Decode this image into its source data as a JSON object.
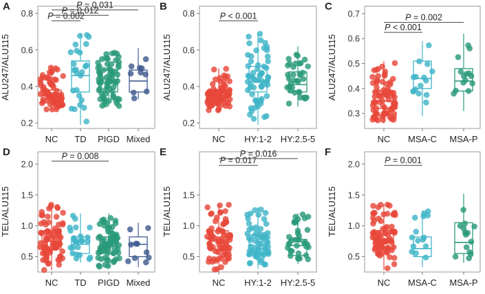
{
  "colors": {
    "NC": "#e8483a",
    "TD": "#3fb4c8",
    "PIGD": "#2a9a7a",
    "Mixed": "#3f5b8f",
    "HY:1-2": "#3fb4c8",
    "HY:2.5-5": "#2a9a7a",
    "MSA-C": "#3fb4c8",
    "MSA-P": "#2a9a7a"
  },
  "chart_data": [
    {
      "type": "box",
      "panel": "A",
      "ylabel": "ALU247/ALU115",
      "ylim": [
        0.17,
        0.84
      ],
      "yticks": [
        0.2,
        0.4,
        0.6,
        0.8
      ],
      "categories": [
        "NC",
        "TD",
        "PIGD",
        "Mixed"
      ],
      "counts": [
        80,
        25,
        70,
        10
      ],
      "boxes": [
        {
          "min": 0.27,
          "q1": 0.31,
          "median": 0.35,
          "q3": 0.38,
          "max": 0.51
        },
        {
          "min": 0.19,
          "q1": 0.37,
          "median": 0.46,
          "q3": 0.54,
          "max": 0.69
        },
        {
          "min": 0.29,
          "q1": 0.37,
          "median": 0.42,
          "q3": 0.49,
          "max": 0.59
        },
        {
          "min": 0.33,
          "q1": 0.37,
          "median": 0.43,
          "q3": 0.49,
          "max": 0.61
        }
      ],
      "annotations": [
        {
          "text": "P = 0.002",
          "from": 0,
          "to": 1,
          "y": 0.76
        },
        {
          "text": "P = 0.012",
          "from": 0,
          "to": 2,
          "y": 0.79
        },
        {
          "text": "P = 0.031",
          "from": 0,
          "to": 3,
          "y": 0.82
        }
      ]
    },
    {
      "type": "box",
      "panel": "B",
      "ylabel": "ALU247/ALU115",
      "ylim": [
        0.17,
        0.84
      ],
      "yticks": [
        0.2,
        0.4,
        0.6,
        0.8
      ],
      "categories": [
        "NC",
        "HY:1-2",
        "HY:2.5-5"
      ],
      "counts": [
        80,
        60,
        35
      ],
      "boxes": [
        {
          "min": 0.27,
          "q1": 0.32,
          "median": 0.35,
          "q3": 0.38,
          "max": 0.5
        },
        {
          "min": 0.19,
          "q1": 0.37,
          "median": 0.43,
          "q3": 0.51,
          "max": 0.69
        },
        {
          "min": 0.29,
          "q1": 0.37,
          "median": 0.41,
          "q3": 0.48,
          "max": 0.62
        }
      ],
      "annotations": [
        {
          "text": "P < 0.001",
          "from": 0,
          "to": 1,
          "y": 0.76
        }
      ]
    },
    {
      "type": "box",
      "panel": "C",
      "ylabel": "ALU247/ALU115",
      "ylim": [
        0.24,
        0.73
      ],
      "yticks": [
        0.3,
        0.4,
        0.5,
        0.6,
        0.7
      ],
      "categories": [
        "NC",
        "MSA-C",
        "MSA-P"
      ],
      "counts": [
        80,
        15,
        14
      ],
      "boxes": [
        {
          "min": 0.26,
          "q1": 0.32,
          "median": 0.35,
          "q3": 0.39,
          "max": 0.51
        },
        {
          "min": 0.29,
          "q1": 0.4,
          "median": 0.44,
          "q3": 0.51,
          "max": 0.59
        },
        {
          "min": 0.31,
          "q1": 0.39,
          "median": 0.43,
          "q3": 0.48,
          "max": 0.62
        }
      ],
      "annotations": [
        {
          "text": "P < 0.001",
          "from": 0,
          "to": 1,
          "y": 0.625
        },
        {
          "text": "P = 0.002",
          "from": 0,
          "to": 2,
          "y": 0.665
        }
      ]
    },
    {
      "type": "box",
      "panel": "D",
      "ylabel": "TEL/ALU115",
      "ylim": [
        0.25,
        2.2
      ],
      "yticks": [
        0.5,
        1.0,
        1.5,
        2.0
      ],
      "categories": [
        "NC",
        "TD",
        "PIGD",
        "Mixed"
      ],
      "counts": [
        80,
        25,
        70,
        10
      ],
      "boxes": [
        {
          "min": 0.28,
          "q1": 0.62,
          "median": 0.75,
          "q3": 0.92,
          "max": 1.35
        },
        {
          "min": 0.4,
          "q1": 0.55,
          "median": 0.7,
          "q3": 0.82,
          "max": 1.2
        },
        {
          "min": 0.32,
          "q1": 0.55,
          "median": 0.68,
          "q3": 0.82,
          "max": 1.2
        },
        {
          "min": 0.33,
          "q1": 0.5,
          "median": 0.7,
          "q3": 0.82,
          "max": 1.05
        }
      ],
      "annotations": [
        {
          "text": "P = 0.008",
          "from": 0,
          "to": 2,
          "y": 2.05
        }
      ]
    },
    {
      "type": "box",
      "panel": "E",
      "ylabel": "TEL/ALU115",
      "ylim": [
        0.25,
        2.2
      ],
      "yticks": [
        0.5,
        1.0,
        1.5
      ],
      "categories": [
        "NC",
        "HY:1-2",
        "HY:2.5-5"
      ],
      "counts": [
        80,
        60,
        35
      ],
      "boxes": [
        {
          "min": 0.28,
          "q1": 0.62,
          "median": 0.75,
          "q3": 0.92,
          "max": 1.35
        },
        {
          "min": 0.3,
          "q1": 0.55,
          "median": 0.68,
          "q3": 0.85,
          "max": 1.3
        },
        {
          "min": 0.38,
          "q1": 0.52,
          "median": 0.68,
          "q3": 0.78,
          "max": 1.2
        }
      ],
      "annotations": [
        {
          "text": "P = 0.017",
          "from": 0,
          "to": 1,
          "y": 1.98
        },
        {
          "text": "P = 0.016",
          "from": 0,
          "to": 2,
          "y": 2.09
        }
      ]
    },
    {
      "type": "box",
      "panel": "F",
      "ylabel": "TEL/ALU115",
      "ylim": [
        0.25,
        2.2
      ],
      "yticks": [
        0.5,
        1.0,
        1.5,
        2.0
      ],
      "categories": [
        "NC",
        "MSA-C",
        "MSA-P"
      ],
      "counts": [
        80,
        15,
        14
      ],
      "boxes": [
        {
          "min": 0.28,
          "q1": 0.62,
          "median": 0.75,
          "q3": 0.92,
          "max": 1.35
        },
        {
          "min": 0.33,
          "q1": 0.5,
          "median": 0.63,
          "q3": 0.82,
          "max": 1.25
        },
        {
          "min": 0.4,
          "q1": 0.55,
          "median": 0.73,
          "q3": 1.05,
          "max": 1.52
        }
      ],
      "annotations": [
        {
          "text": "P = 0.001",
          "from": 0,
          "to": 1,
          "y": 1.98
        }
      ]
    }
  ]
}
